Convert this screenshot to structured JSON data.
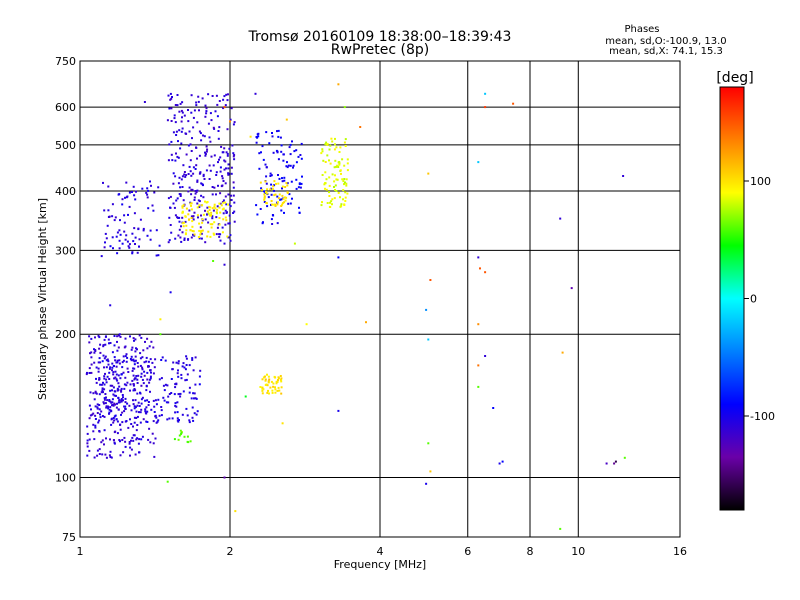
{
  "chart_data": {
    "type": "scatter",
    "title": "Tromsø 20160109 18:38:00–18:39:43",
    "subtitle": "RwPretec (8p)",
    "xlabel": "Frequency [MHz]",
    "ylabel": "Stationary phase Virtual Height [km]",
    "x_scale": "log2",
    "y_scale": "log",
    "xlim": [
      1,
      16
    ],
    "ylim": [
      75,
      750
    ],
    "x_ticks": [
      1,
      2,
      4,
      6,
      8,
      10,
      16
    ],
    "x_tick_labels": [
      "1",
      "2",
      "4",
      "6",
      "8",
      "10",
      "16"
    ],
    "y_ticks": [
      75,
      100,
      200,
      300,
      400,
      500,
      600,
      750
    ],
    "y_tick_labels": [
      "75",
      "100",
      "200",
      "300",
      "400",
      "500",
      "600",
      "750"
    ],
    "grid": true,
    "stats": {
      "heading": "Phases",
      "line1": "mean, sd,O:-100.9, 13.0",
      "line2": "mean, sd,X:  74.1, 15.3"
    },
    "colorbar": {
      "label": "[deg]",
      "range": [
        -180,
        180
      ],
      "ticks": [
        100,
        0,
        -100
      ],
      "tick_labels": [
        "100",
        "0",
        "-100"
      ],
      "colors": [
        "#000000",
        "#6a00a8",
        "#0000ff",
        "#0080ff",
        "#00ffff",
        "#00ff00",
        "#ffff00",
        "#ff8000",
        "#ff0000"
      ]
    },
    "clusters": [
      {
        "x": [
          1.03,
          1.42
        ],
        "y": [
          110,
          200
        ],
        "n": 320,
        "phase": -110
      },
      {
        "x": [
          1.08,
          1.75
        ],
        "y": [
          130,
          180
        ],
        "n": 240,
        "phase": -105
      },
      {
        "x": [
          1.1,
          1.45
        ],
        "y": [
          290,
          420
        ],
        "n": 90,
        "phase": -105
      },
      {
        "x": [
          1.5,
          2.05
        ],
        "y": [
          310,
          640
        ],
        "n": 320,
        "phase": -110
      },
      {
        "x": [
          1.6,
          2.0
        ],
        "y": [
          320,
          380
        ],
        "n": 90,
        "phase": 95
      },
      {
        "x": [
          2.25,
          2.8
        ],
        "y": [
          340,
          540
        ],
        "n": 110,
        "phase": -95
      },
      {
        "x": [
          2.3,
          2.65
        ],
        "y": [
          370,
          420
        ],
        "n": 45,
        "phase": 100
      },
      {
        "x": [
          3.05,
          3.45
        ],
        "y": [
          370,
          520
        ],
        "n": 95,
        "phase": 85
      },
      {
        "x": [
          2.3,
          2.55
        ],
        "y": [
          150,
          165
        ],
        "n": 50,
        "phase": 100
      },
      {
        "x": [
          1.55,
          1.68
        ],
        "y": [
          118,
          126
        ],
        "n": 12,
        "phase": 60
      }
    ],
    "points": [
      {
        "x": 1.35,
        "y": 615,
        "phase": -110
      },
      {
        "x": 1.15,
        "y": 230,
        "phase": -105
      },
      {
        "x": 1.45,
        "y": 215,
        "phase": 95
      },
      {
        "x": 1.52,
        "y": 245,
        "phase": -100
      },
      {
        "x": 1.85,
        "y": 285,
        "phase": 60
      },
      {
        "x": 1.95,
        "y": 280,
        "phase": -110
      },
      {
        "x": 1.95,
        "y": 600,
        "phase": 150
      },
      {
        "x": 2.0,
        "y": 560,
        "phase": 130
      },
      {
        "x": 2.05,
        "y": 85,
        "phase": 100
      },
      {
        "x": 1.95,
        "y": 100,
        "phase": -130
      },
      {
        "x": 1.5,
        "y": 98,
        "phase": 60
      },
      {
        "x": 1.45,
        "y": 200,
        "phase": 60
      },
      {
        "x": 2.2,
        "y": 520,
        "phase": 100
      },
      {
        "x": 2.25,
        "y": 640,
        "phase": -110
      },
      {
        "x": 2.6,
        "y": 565,
        "phase": 110
      },
      {
        "x": 2.7,
        "y": 310,
        "phase": 80
      },
      {
        "x": 2.85,
        "y": 210,
        "phase": 90
      },
      {
        "x": 3.3,
        "y": 670,
        "phase": 120
      },
      {
        "x": 3.4,
        "y": 600,
        "phase": 70
      },
      {
        "x": 3.65,
        "y": 545,
        "phase": 140
      },
      {
        "x": 3.3,
        "y": 290,
        "phase": -90
      },
      {
        "x": 3.3,
        "y": 138,
        "phase": -100
      },
      {
        "x": 3.75,
        "y": 212,
        "phase": 120
      },
      {
        "x": 2.15,
        "y": 148,
        "phase": 40
      },
      {
        "x": 2.55,
        "y": 130,
        "phase": 100
      },
      {
        "x": 5.0,
        "y": 435,
        "phase": 110
      },
      {
        "x": 5.05,
        "y": 260,
        "phase": 150
      },
      {
        "x": 4.95,
        "y": 225,
        "phase": -40
      },
      {
        "x": 5.0,
        "y": 195,
        "phase": -20
      },
      {
        "x": 5.0,
        "y": 118,
        "phase": 60
      },
      {
        "x": 4.95,
        "y": 97,
        "phase": -100
      },
      {
        "x": 5.05,
        "y": 103,
        "phase": 110
      },
      {
        "x": 6.3,
        "y": 460,
        "phase": -20
      },
      {
        "x": 6.5,
        "y": 640,
        "phase": -20
      },
      {
        "x": 6.5,
        "y": 600,
        "phase": 160
      },
      {
        "x": 7.4,
        "y": 610,
        "phase": 150
      },
      {
        "x": 6.3,
        "y": 290,
        "phase": -110
      },
      {
        "x": 6.35,
        "y": 275,
        "phase": 150
      },
      {
        "x": 6.5,
        "y": 270,
        "phase": 150
      },
      {
        "x": 6.3,
        "y": 210,
        "phase": 130
      },
      {
        "x": 6.5,
        "y": 180,
        "phase": -110
      },
      {
        "x": 6.3,
        "y": 172,
        "phase": 140
      },
      {
        "x": 6.3,
        "y": 155,
        "phase": 60
      },
      {
        "x": 6.75,
        "y": 140,
        "phase": -90
      },
      {
        "x": 7.05,
        "y": 108,
        "phase": -90
      },
      {
        "x": 6.95,
        "y": 107,
        "phase": -100
      },
      {
        "x": 9.2,
        "y": 350,
        "phase": -110
      },
      {
        "x": 9.7,
        "y": 250,
        "phase": -130
      },
      {
        "x": 9.3,
        "y": 183,
        "phase": 120
      },
      {
        "x": 9.2,
        "y": 78,
        "phase": 60
      },
      {
        "x": 12.3,
        "y": 430,
        "phase": -110
      },
      {
        "x": 11.8,
        "y": 107,
        "phase": -140
      },
      {
        "x": 11.4,
        "y": 107,
        "phase": -120
      },
      {
        "x": 11.9,
        "y": 108,
        "phase": -160
      },
      {
        "x": 12.4,
        "y": 110,
        "phase": 60
      }
    ]
  }
}
